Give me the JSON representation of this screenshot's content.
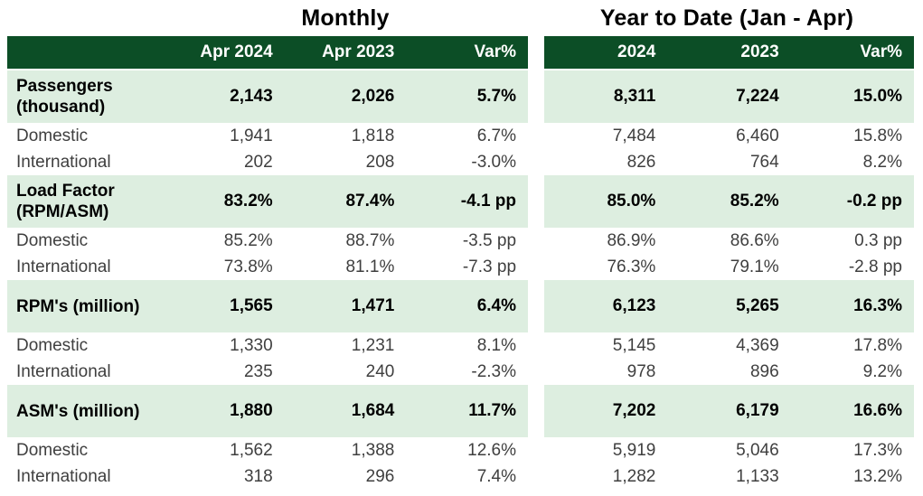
{
  "titles": {
    "monthly": "Monthly",
    "ytd": "Year to Date (Jan - Apr)"
  },
  "colors": {
    "header_bg": "#0c4e26",
    "header_text": "#ffffff",
    "section_row_bg": "#ddeee0",
    "detail_text": "#3f3f3f"
  },
  "left_table": {
    "headers": [
      "Apr 2024",
      "Apr 2023",
      "Var%"
    ]
  },
  "right_table": {
    "headers": [
      "2024",
      "2023",
      "Var%"
    ]
  },
  "rows": [
    {
      "type": "section",
      "label": "Passengers (thousand)",
      "monthly": [
        "2,143",
        "2,026",
        "5.7%"
      ],
      "ytd": [
        "8,311",
        "7,224",
        "15.0%"
      ]
    },
    {
      "type": "detail",
      "label": "Domestic",
      "monthly": [
        "1,941",
        "1,818",
        "6.7%"
      ],
      "ytd": [
        "7,484",
        "6,460",
        "15.8%"
      ]
    },
    {
      "type": "detail",
      "label": "International",
      "monthly": [
        "202",
        "208",
        "-3.0%"
      ],
      "ytd": [
        "826",
        "764",
        "8.2%"
      ]
    },
    {
      "type": "section",
      "label": "Load Factor (RPM/ASM)",
      "monthly": [
        "83.2%",
        "87.4%",
        "-4.1 pp"
      ],
      "ytd": [
        "85.0%",
        "85.2%",
        "-0.2 pp"
      ]
    },
    {
      "type": "detail",
      "label": "Domestic",
      "monthly": [
        "85.2%",
        "88.7%",
        "-3.5 pp"
      ],
      "ytd": [
        "86.9%",
        "86.6%",
        "0.3 pp"
      ]
    },
    {
      "type": "detail",
      "label": "International",
      "monthly": [
        "73.8%",
        "81.1%",
        "-7.3 pp"
      ],
      "ytd": [
        "76.3%",
        "79.1%",
        "-2.8 pp"
      ]
    },
    {
      "type": "section",
      "label": "RPM's (million)",
      "monthly": [
        "1,565",
        "1,471",
        "6.4%"
      ],
      "ytd": [
        "6,123",
        "5,265",
        "16.3%"
      ]
    },
    {
      "type": "detail",
      "label": "Domestic",
      "monthly": [
        "1,330",
        "1,231",
        "8.1%"
      ],
      "ytd": [
        "5,145",
        "4,369",
        "17.8%"
      ]
    },
    {
      "type": "detail",
      "label": "International",
      "monthly": [
        "235",
        "240",
        "-2.3%"
      ],
      "ytd": [
        "978",
        "896",
        "9.2%"
      ]
    },
    {
      "type": "section",
      "label": "ASM's (million)",
      "monthly": [
        "1,880",
        "1,684",
        "11.7%"
      ],
      "ytd": [
        "7,202",
        "6,179",
        "16.6%"
      ]
    },
    {
      "type": "detail",
      "label": "Domestic",
      "monthly": [
        "1,562",
        "1,388",
        "12.6%"
      ],
      "ytd": [
        "5,919",
        "5,046",
        "17.3%"
      ]
    },
    {
      "type": "detail",
      "label": "International",
      "monthly": [
        "318",
        "296",
        "7.4%"
      ],
      "ytd": [
        "1,282",
        "1,133",
        "13.2%"
      ]
    }
  ]
}
